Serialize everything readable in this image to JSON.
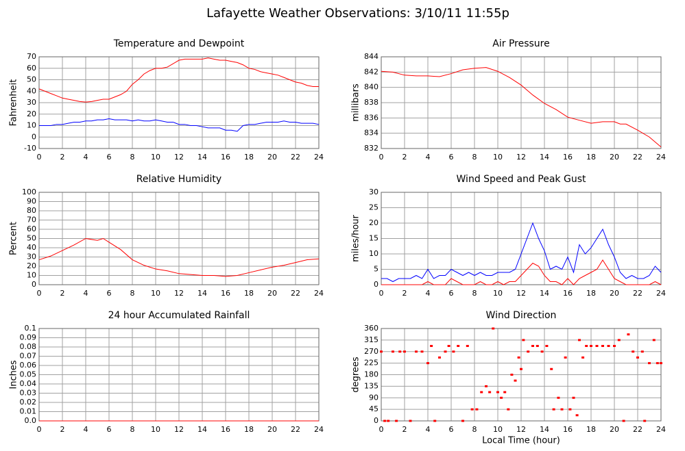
{
  "title": "Lafayette Weather Observations: 3/10/11 11:55p",
  "chart_data": [
    {
      "type": "line",
      "title": "Temperature and Dewpoint",
      "ylabel": "Fahrenheit",
      "xlim": [
        0,
        24
      ],
      "xticks": [
        0,
        2,
        4,
        6,
        8,
        10,
        12,
        14,
        16,
        18,
        20,
        22,
        24
      ],
      "ylim": [
        -10,
        70
      ],
      "yticks": [
        -10,
        0,
        10,
        20,
        30,
        40,
        50,
        60,
        70
      ],
      "grid": true,
      "x": [
        0,
        0.5,
        1,
        1.5,
        2,
        2.5,
        3,
        3.5,
        4,
        4.5,
        5,
        5.5,
        6,
        6.5,
        7,
        7.5,
        8,
        8.5,
        9,
        9.5,
        10,
        10.5,
        11,
        11.5,
        12,
        12.5,
        13,
        13.5,
        14,
        14.5,
        15,
        15.5,
        16,
        16.5,
        17,
        17.5,
        18,
        18.5,
        19,
        19.5,
        20,
        20.5,
        21,
        21.5,
        22,
        22.5,
        23,
        23.5,
        24
      ],
      "series": [
        {
          "color": "#ff0000",
          "values": [
            42,
            40,
            38,
            36,
            34,
            33,
            32,
            31,
            30.5,
            31,
            32,
            33,
            33,
            35,
            37,
            40,
            46,
            50,
            55,
            58,
            60,
            60,
            61,
            64,
            67,
            68,
            68,
            68,
            68,
            69,
            68,
            67,
            67,
            66,
            65,
            63,
            60,
            59,
            57,
            56,
            55,
            54,
            52,
            50,
            48,
            47,
            45,
            44,
            44
          ]
        },
        {
          "color": "#0000ff",
          "values": [
            10,
            10,
            10,
            11,
            11,
            12,
            13,
            13,
            14,
            14,
            15,
            15,
            16,
            15,
            15,
            15,
            14,
            15,
            14,
            14,
            15,
            14,
            13,
            13,
            11,
            11,
            10,
            10,
            9,
            8,
            8,
            8,
            6,
            6,
            5,
            10,
            11,
            11,
            12,
            13,
            13,
            13,
            14,
            13,
            13,
            12,
            12,
            12,
            11
          ]
        }
      ]
    },
    {
      "type": "line",
      "title": "Air Pressure",
      "ylabel": "millibars",
      "xlim": [
        0,
        24
      ],
      "xticks": [
        0,
        2,
        4,
        6,
        8,
        10,
        12,
        14,
        16,
        18,
        20,
        22,
        24
      ],
      "ylim": [
        832,
        844
      ],
      "yticks": [
        832,
        834,
        836,
        838,
        840,
        842,
        844
      ],
      "grid": true,
      "x": [
        0,
        1,
        2,
        3,
        4,
        5,
        6,
        7,
        8,
        9,
        10,
        11,
        12,
        13,
        14,
        15,
        16,
        17,
        18,
        19,
        20,
        20.5,
        21,
        22,
        23,
        24
      ],
      "series": [
        {
          "color": "#ff0000",
          "values": [
            842.1,
            842,
            841.6,
            841.5,
            841.5,
            841.4,
            841.8,
            842.3,
            842.5,
            842.6,
            842.1,
            841.3,
            840.3,
            839,
            837.9,
            837.1,
            836.1,
            835.7,
            835.3,
            835.5,
            835.5,
            835.2,
            835.2,
            834.4,
            833.5,
            832.2
          ]
        }
      ]
    },
    {
      "type": "line",
      "title": "Relative Humidity",
      "ylabel": "Percent",
      "xlim": [
        0,
        24
      ],
      "xticks": [
        0,
        2,
        4,
        6,
        8,
        10,
        12,
        14,
        16,
        18,
        20,
        22,
        24
      ],
      "ylim": [
        0,
        100
      ],
      "yticks": [
        0,
        10,
        20,
        30,
        40,
        50,
        60,
        70,
        80,
        90,
        100
      ],
      "grid": true,
      "x": [
        0,
        1,
        2,
        3,
        4,
        5,
        5.5,
        6,
        7,
        8,
        9,
        10,
        11,
        12,
        13,
        14,
        15,
        16,
        17,
        18,
        19,
        20,
        21,
        22,
        23,
        24
      ],
      "series": [
        {
          "color": "#ff0000",
          "values": [
            27,
            31,
            37,
            43,
            50,
            48,
            50,
            46,
            38,
            27,
            21,
            17,
            15,
            12,
            11,
            10,
            10,
            9,
            10,
            13,
            16,
            19,
            21,
            24,
            27,
            28
          ]
        }
      ]
    },
    {
      "type": "line",
      "title": "Wind Speed and Peak Gust",
      "ylabel": "miles/hour",
      "xlim": [
        0,
        24
      ],
      "xticks": [
        0,
        2,
        4,
        6,
        8,
        10,
        12,
        14,
        16,
        18,
        20,
        22,
        24
      ],
      "ylim": [
        0,
        30
      ],
      "yticks": [
        0,
        5,
        10,
        15,
        20,
        25,
        30
      ],
      "grid": true,
      "x": [
        0,
        0.5,
        1,
        1.5,
        2,
        2.5,
        3,
        3.5,
        4,
        4.5,
        5,
        5.5,
        6,
        6.5,
        7,
        7.5,
        8,
        8.5,
        9,
        9.5,
        10,
        10.5,
        11,
        11.5,
        12,
        12.5,
        13,
        13.5,
        14,
        14.5,
        15,
        15.5,
        16,
        16.5,
        17,
        17.5,
        18,
        18.5,
        19,
        19.5,
        20,
        20.5,
        21,
        21.5,
        22,
        22.5,
        23,
        23.5,
        24
      ],
      "series": [
        {
          "color": "#0000ff",
          "values": [
            2,
            2,
            1,
            2,
            2,
            2,
            3,
            2,
            5,
            2,
            3,
            3,
            5,
            4,
            3,
            4,
            3,
            4,
            3,
            3,
            4,
            4,
            4,
            5,
            10,
            15,
            20,
            15,
            11,
            5,
            6,
            5,
            9,
            4,
            13,
            10,
            12,
            15,
            18,
            13,
            9,
            4,
            2,
            3,
            2,
            2,
            3,
            6,
            4
          ]
        },
        {
          "color": "#ff0000",
          "values": [
            0,
            0,
            0,
            0,
            0,
            0,
            0,
            0,
            1,
            0,
            0,
            0,
            2,
            1,
            0,
            0,
            0,
            1,
            0,
            0,
            1,
            0,
            1,
            1,
            3,
            5,
            7,
            6,
            3,
            1,
            1,
            0,
            2,
            0,
            2,
            3,
            4,
            5,
            8,
            5,
            2,
            1,
            0,
            0,
            0,
            0,
            0,
            1,
            0
          ]
        }
      ]
    },
    {
      "type": "line",
      "title": "24 hour Accumulated Rainfall",
      "ylabel": "Inches",
      "xlim": [
        0,
        24
      ],
      "xticks": [
        0,
        2,
        4,
        6,
        8,
        10,
        12,
        14,
        16,
        18,
        20,
        22,
        24
      ],
      "ylim": [
        0,
        0.1
      ],
      "yticks": [
        {
          "value": 0,
          "label": "0.0"
        },
        0.01,
        0.02,
        0.03,
        0.04,
        0.05,
        0.06,
        0.07,
        0.08,
        0.09,
        0.1
      ],
      "grid": true,
      "x": [
        0,
        24
      ],
      "series": [
        {
          "color": "#ff0000",
          "values": [
            0,
            0
          ]
        }
      ]
    },
    {
      "type": "scatter",
      "title": "Wind Direction",
      "ylabel": "degrees",
      "xlabel": "Local Time (hour)",
      "xlim": [
        0,
        24
      ],
      "xticks": [
        0,
        2,
        4,
        6,
        8,
        10,
        12,
        14,
        16,
        18,
        20,
        22,
        24
      ],
      "ylim": [
        0,
        360
      ],
      "yticks": [
        0,
        45,
        90,
        135,
        180,
        225,
        270,
        315,
        360
      ],
      "grid": true,
      "x": [
        0,
        0.3,
        0.6,
        1,
        1.3,
        1.6,
        2,
        2.5,
        3,
        3.5,
        4,
        4.3,
        4.6,
        5,
        5.5,
        5.8,
        6.2,
        6.6,
        7,
        7.4,
        7.8,
        8.2,
        8.6,
        9,
        9.3,
        9.6,
        10,
        10.3,
        10.6,
        10.9,
        11.2,
        11.5,
        11.8,
        12,
        12.2,
        12.6,
        13,
        13.4,
        13.8,
        14.2,
        14.6,
        14.8,
        15.2,
        15.5,
        15.8,
        16.2,
        16.5,
        16.8,
        17,
        17.3,
        17.6,
        18,
        18.5,
        19,
        19.5,
        20,
        20.4,
        20.8,
        21.2,
        21.6,
        22,
        22.4,
        22.6,
        23,
        23.4,
        23.7,
        24
      ],
      "series": [
        {
          "color": "#ff0000",
          "values": [
            270,
            0,
            0,
            270,
            0,
            270,
            270,
            0,
            270,
            270,
            225,
            292,
            0,
            247,
            270,
            292,
            270,
            292,
            0,
            292,
            45,
            45,
            112,
            135,
            112,
            360,
            112,
            90,
            112,
            45,
            180,
            157,
            247,
            202,
            315,
            270,
            292,
            292,
            270,
            292,
            202,
            45,
            90,
            45,
            247,
            45,
            90,
            22,
            315,
            247,
            292,
            292,
            292,
            292,
            292,
            292,
            315,
            0,
            337,
            270,
            247,
            270,
            0,
            225,
            315,
            225,
            225
          ]
        }
      ]
    }
  ]
}
